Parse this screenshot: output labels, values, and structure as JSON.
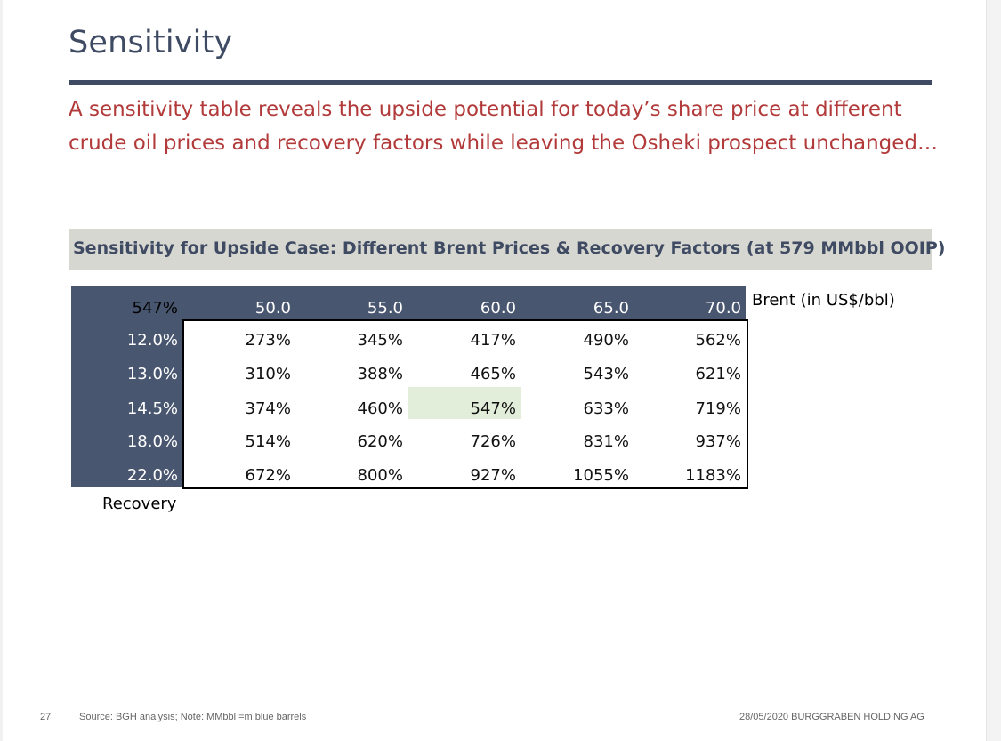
{
  "slide": {
    "title": "Sensitivity",
    "subtitle_line1": "A sensitivity table reveals the upside potential for today’s share price at different",
    "subtitle_line2": "crude oil prices and recovery factors while leaving the Osheki prospect unchanged…"
  },
  "table": {
    "caption": "Sensitivity for Upside Case: Different Brent Prices & Recovery Factors (at 579 MMbbl OOIP)",
    "corner_value": "547%",
    "column_axis_label": "Brent (in US$/bbl)",
    "row_axis_label": "Recovery",
    "columns": [
      "50.0",
      "55.0",
      "60.0",
      "65.0",
      "70.0"
    ],
    "rows": [
      {
        "label": "12.0%",
        "values": [
          "273%",
          "345%",
          "417%",
          "490%",
          "562%"
        ]
      },
      {
        "label": "13.0%",
        "values": [
          "310%",
          "388%",
          "465%",
          "543%",
          "621%"
        ]
      },
      {
        "label": "14.5%",
        "values": [
          "374%",
          "460%",
          "547%",
          "633%",
          "719%"
        ]
      },
      {
        "label": "18.0%",
        "values": [
          "514%",
          "620%",
          "726%",
          "831%",
          "937%"
        ]
      },
      {
        "label": "22.0%",
        "values": [
          "672%",
          "800%",
          "927%",
          "1055%",
          "1183%"
        ]
      }
    ],
    "highlighted_cell": {
      "row": "14.5%",
      "column": "60.0",
      "value": "547%"
    }
  },
  "footer": {
    "page_number": "27",
    "source": "Source: BGH analysis; Note: MMbbl =m blue barrels",
    "date_company": "28/05/2020 BURGGRABEN HOLDING AG"
  },
  "colors": {
    "title": "#3f4a63",
    "subtitle": "#b23a3a",
    "header_fill": "#495670",
    "caption_fill": "#d7d7d1",
    "highlight_fill": "#e2eed9"
  }
}
